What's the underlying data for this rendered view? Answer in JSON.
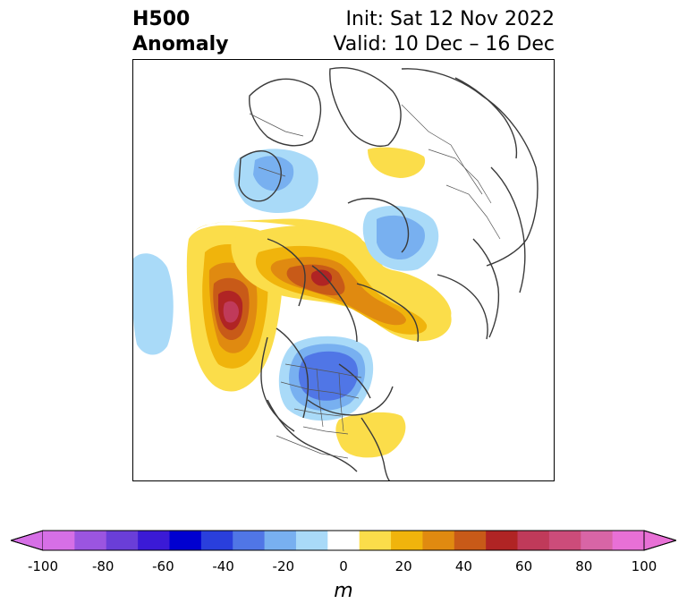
{
  "title": {
    "left_line1": "H500",
    "left_line2": "Anomaly",
    "init": "Init: Sat 12 Nov 2022",
    "valid": "Valid: 10 Dec – 16 Dec"
  },
  "colorbar": {
    "units": "m",
    "ticks": [
      "-100",
      "-80",
      "-60",
      "-40",
      "-20",
      "0",
      "20",
      "40",
      "60",
      "80",
      "100"
    ],
    "levels": [
      -100,
      -90,
      -80,
      -70,
      -60,
      -50,
      -40,
      -30,
      -20,
      -10,
      10,
      20,
      30,
      40,
      50,
      60,
      70,
      80,
      90,
      100
    ],
    "colors": [
      "#d66fe6",
      "#9b55e0",
      "#6a3ed8",
      "#3b1ad6",
      "#0000d0",
      "#2a3fdc",
      "#5076e6",
      "#78b0f0",
      "#a9daf8",
      "#ffffff",
      "#fbdd4a",
      "#f0b40c",
      "#e08a10",
      "#c85a18",
      "#b02424",
      "#c03a5a",
      "#cc4c7a",
      "#d865a6",
      "#e870d6"
    ],
    "extend_min_color": "#d66fe6",
    "extend_max_color": "#e870d6"
  },
  "map": {
    "projection": "north-polar-stereographic",
    "variable": "500 hPa geopotential height anomaly"
  }
}
